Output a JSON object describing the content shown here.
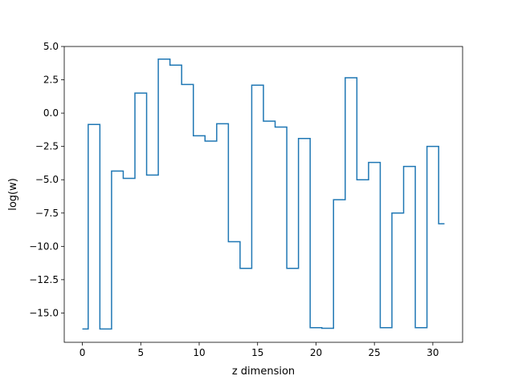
{
  "chart_data": {
    "type": "line",
    "step": "mid",
    "title": "",
    "xlabel": "z dimension",
    "ylabel": "log(w)",
    "xlim": [
      -1.55,
      32.55
    ],
    "ylim": [
      -17.2,
      5.0
    ],
    "xticks": [
      0,
      5,
      10,
      15,
      20,
      25,
      30
    ],
    "xtick_labels": [
      "0",
      "5",
      "10",
      "15",
      "20",
      "25",
      "30"
    ],
    "yticks": [
      5.0,
      2.5,
      0.0,
      -2.5,
      -5.0,
      -7.5,
      -10.0,
      -12.5,
      -15.0
    ],
    "ytick_labels": [
      "5.0",
      "2.5",
      "0.0",
      "−2.5",
      "−5.0",
      "−7.5",
      "−10.0",
      "−12.5",
      "−15.0"
    ],
    "grid": false,
    "legend": "none",
    "line_color": "#1f77b4",
    "series": [
      {
        "x": [
          0,
          1,
          2,
          3,
          4,
          5,
          6,
          7,
          8,
          9,
          10,
          11,
          12,
          13,
          14,
          15,
          16,
          17,
          18,
          19,
          20,
          21,
          22,
          23,
          24,
          25,
          26,
          27,
          28,
          29,
          30,
          31
        ],
        "values": [
          -16.2,
          -0.85,
          -16.2,
          -4.35,
          -4.9,
          1.5,
          -4.65,
          4.05,
          3.6,
          2.15,
          -1.7,
          -2.1,
          -0.8,
          -9.65,
          -11.65,
          2.1,
          -0.6,
          -1.05,
          -11.65,
          -1.9,
          -16.1,
          -16.15,
          -6.5,
          2.65,
          -5.0,
          -3.7,
          -16.1,
          -7.5,
          -4.0,
          -16.1,
          -2.5,
          -8.3
        ]
      }
    ]
  }
}
